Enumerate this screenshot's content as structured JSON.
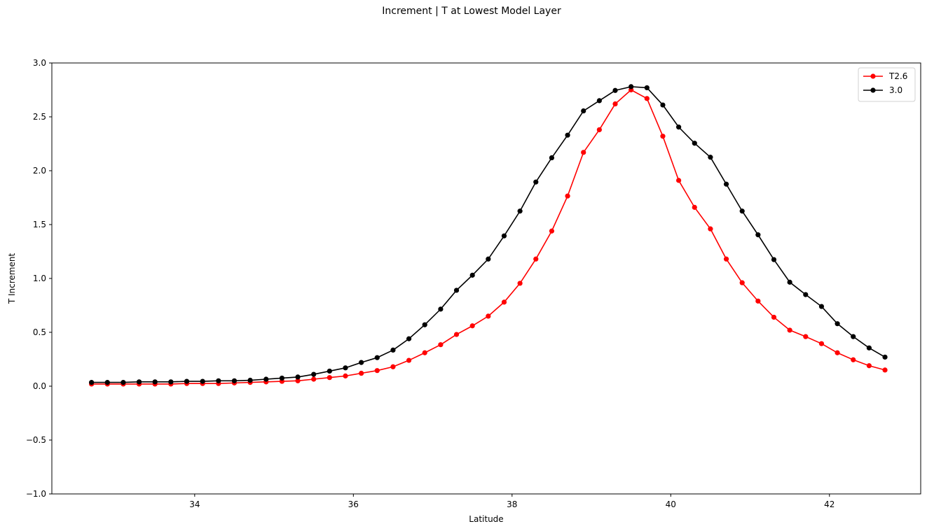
{
  "chart_data": {
    "type": "line",
    "title": "Increment | T at Lowest Model Layer",
    "xlabel": "Latitude",
    "ylabel": "T Increment",
    "xlim": [
      32.2,
      43.15
    ],
    "ylim": [
      -1.0,
      3.0
    ],
    "xticks": [
      34,
      36,
      38,
      40,
      42
    ],
    "yticks": [
      -1.0,
      -0.5,
      0.0,
      0.5,
      1.0,
      1.5,
      2.0,
      2.5,
      3.0
    ],
    "xtick_labels": [
      "34",
      "36",
      "38",
      "40",
      "42"
    ],
    "ytick_labels": [
      "−1.0",
      "−0.5",
      "0.0",
      "0.5",
      "1.0",
      "1.5",
      "2.0",
      "2.5",
      "3.0"
    ],
    "grid": false,
    "legend_position": "top-right",
    "x": [
      32.7,
      32.9,
      33.1,
      33.3,
      33.5,
      33.7,
      33.9,
      34.1,
      34.3,
      34.5,
      34.7,
      34.9,
      35.1,
      35.3,
      35.5,
      35.7,
      35.9,
      36.1,
      36.3,
      36.5,
      36.7,
      36.9,
      37.1,
      37.3,
      37.5,
      37.7,
      37.9,
      38.1,
      38.3,
      38.5,
      38.7,
      38.9,
      39.1,
      39.3,
      39.5,
      39.7,
      39.9,
      40.1,
      40.3,
      40.5,
      40.7,
      40.9,
      41.1,
      41.3,
      41.5,
      41.7,
      41.9,
      42.1,
      42.3,
      42.5,
      42.7
    ],
    "series": [
      {
        "name": "T2.6",
        "color": "#ff0000",
        "values": [
          0.02,
          0.02,
          0.02,
          0.02,
          0.02,
          0.02,
          0.025,
          0.025,
          0.025,
          0.03,
          0.035,
          0.04,
          0.045,
          0.05,
          0.065,
          0.08,
          0.095,
          0.12,
          0.145,
          0.18,
          0.24,
          0.31,
          0.385,
          0.48,
          0.56,
          0.65,
          0.78,
          0.955,
          1.18,
          1.44,
          1.765,
          2.17,
          2.38,
          2.62,
          2.75,
          2.67,
          2.32,
          1.91,
          1.66,
          1.46,
          1.18,
          0.96,
          0.79,
          0.64,
          0.52,
          0.46,
          0.395,
          0.31,
          0.245,
          0.19,
          0.15
        ]
      },
      {
        "name": "3.0",
        "color": "#000000",
        "values": [
          0.035,
          0.035,
          0.035,
          0.04,
          0.04,
          0.04,
          0.045,
          0.045,
          0.05,
          0.05,
          0.055,
          0.065,
          0.075,
          0.085,
          0.11,
          0.14,
          0.17,
          0.22,
          0.265,
          0.335,
          0.44,
          0.57,
          0.715,
          0.89,
          1.03,
          1.18,
          1.395,
          1.625,
          1.895,
          2.12,
          2.33,
          2.555,
          2.65,
          2.745,
          2.78,
          2.77,
          2.61,
          2.405,
          2.255,
          2.125,
          1.875,
          1.625,
          1.405,
          1.175,
          0.965,
          0.85,
          0.74,
          0.58,
          0.46,
          0.355,
          0.27
        ]
      }
    ]
  }
}
